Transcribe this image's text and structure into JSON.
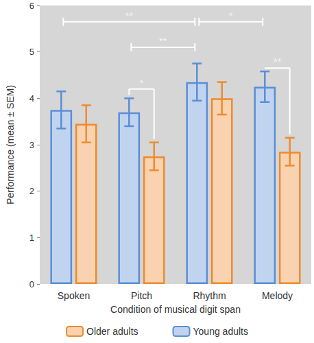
{
  "chart_data": {
    "type": "bar",
    "categories": [
      "Spoken",
      "Pitch",
      "Rhythm",
      "Melody"
    ],
    "series": [
      {
        "name": "Young adults",
        "color": "#5b8ed6",
        "values": [
          3.75,
          3.7,
          4.35,
          4.25
        ],
        "errors": [
          0.4,
          0.3,
          0.4,
          0.33
        ]
      },
      {
        "name": "Older adults",
        "color": "#f08a2e",
        "values": [
          3.45,
          2.75,
          4.0,
          2.85
        ],
        "errors": [
          0.4,
          0.3,
          0.35,
          0.3
        ]
      }
    ],
    "x_label": "Condition of musical digit span",
    "y_label": "Performance (mean ± SEM)",
    "ylim": [
      0,
      6
    ],
    "yticks": [
      0,
      1,
      2,
      3,
      4,
      5,
      6
    ],
    "grid": false,
    "legend": "bottom",
    "annotations": [
      {
        "from": [
          "Spoken",
          "Young adults"
        ],
        "to": [
          "Rhythm",
          "Young adults"
        ],
        "y": 5.65,
        "label": "**"
      },
      {
        "from": [
          "Rhythm",
          "Young adults"
        ],
        "to": [
          "Melody",
          "Young adults"
        ],
        "y": 5.65,
        "label": "*"
      },
      {
        "from": [
          "Pitch",
          "Young adults"
        ],
        "to": [
          "Rhythm",
          "Young adults"
        ],
        "y": 5.1,
        "label": "**"
      },
      {
        "from": [
          "Pitch",
          "Young adults"
        ],
        "to": [
          "Pitch",
          "Older adults"
        ],
        "y": 4.2,
        "label": "*"
      },
      {
        "from": [
          "Melody",
          "Young adults"
        ],
        "to": [
          "Melody",
          "Older adults"
        ],
        "y": 4.65,
        "label": "**"
      }
    ]
  }
}
